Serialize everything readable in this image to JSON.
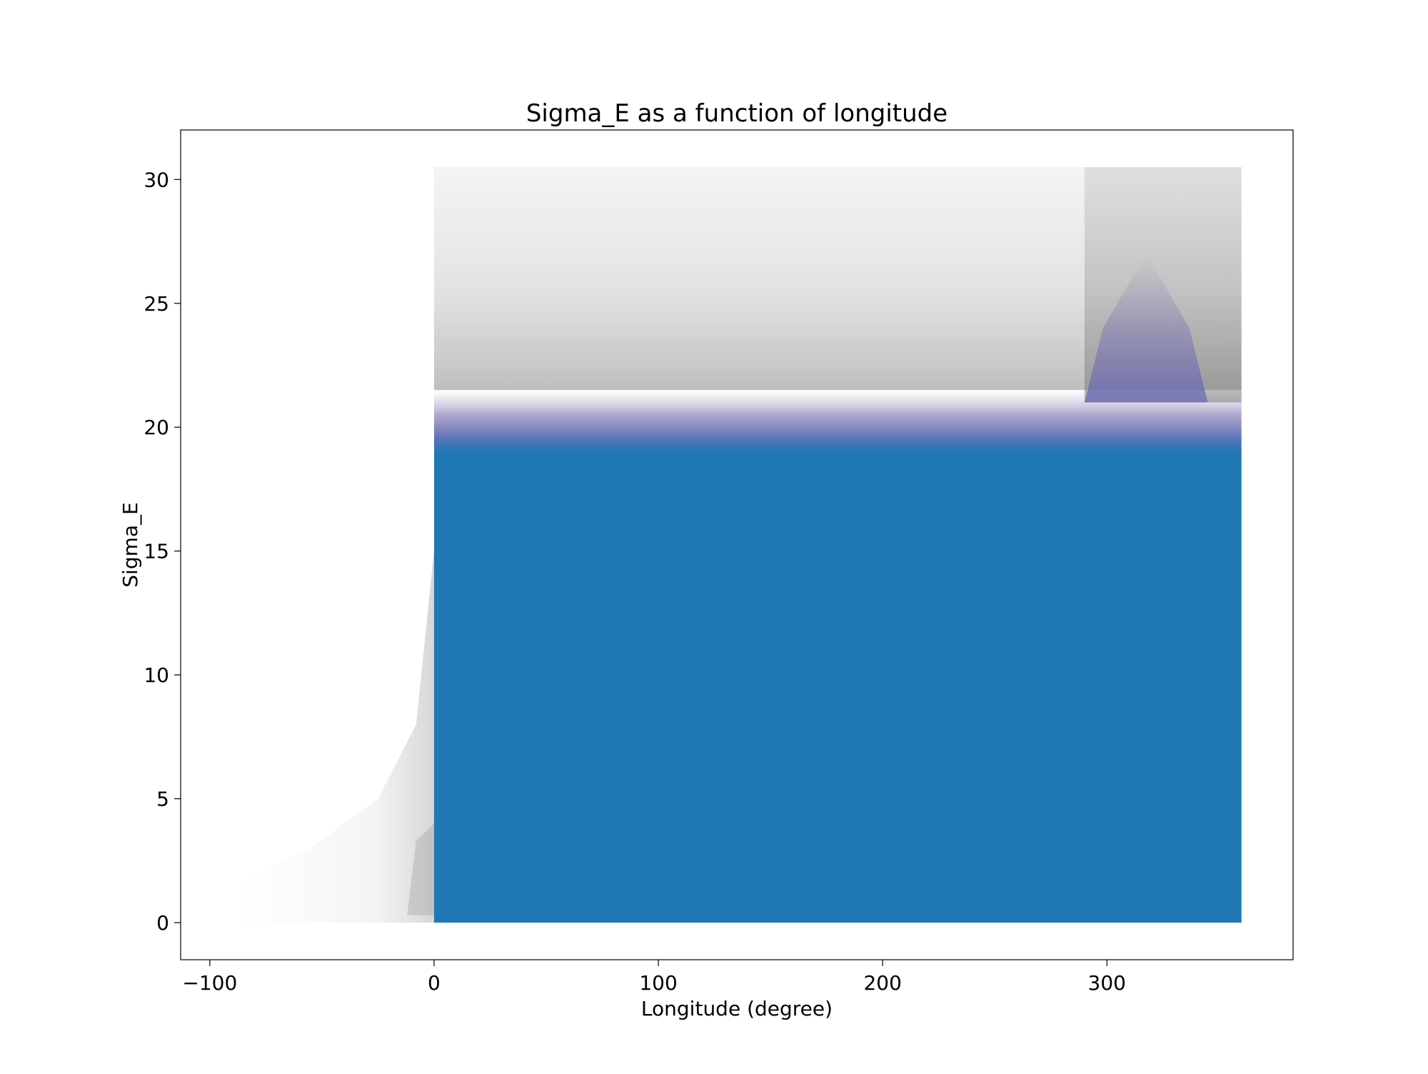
{
  "chart_data": {
    "type": "scatter",
    "title": "Sigma_E as a function of longitude",
    "xlabel": "Longitude (degree)",
    "ylabel": "Sigma_E",
    "xlim": [
      -113,
      383
    ],
    "ylim": [
      -1.5,
      32
    ],
    "xticks": [
      {
        "value": -100,
        "label": "−100"
      },
      {
        "value": 0,
        "label": "0"
      },
      {
        "value": 100,
        "label": "100"
      },
      {
        "value": 200,
        "label": "200"
      },
      {
        "value": 300,
        "label": "300"
      }
    ],
    "yticks": [
      {
        "value": 0,
        "label": "0"
      },
      {
        "value": 5,
        "label": "5"
      },
      {
        "value": 10,
        "label": "10"
      },
      {
        "value": 15,
        "label": "15"
      },
      {
        "value": 20,
        "label": "20"
      },
      {
        "value": 25,
        "label": "25"
      },
      {
        "value": 30,
        "label": "30"
      }
    ],
    "grid": false,
    "legend": false,
    "colors": {
      "points": "#1f77b4",
      "faint_points": "#7f7f7f",
      "transition": "#6a6ab5"
    },
    "regions": [
      {
        "name": "dense-blue-block",
        "x_range": [
          0,
          360
        ],
        "y_range": [
          0,
          19
        ],
        "density": "saturated"
      },
      {
        "name": "purple-transition-band",
        "x_range": [
          0,
          360
        ],
        "y_range": [
          19,
          21.5
        ],
        "density": "high"
      },
      {
        "name": "purple-high-plume",
        "x_range": [
          290,
          345
        ],
        "y_range": [
          21,
          27
        ],
        "density": "medium"
      },
      {
        "name": "grey-upper-band",
        "x_range": [
          0,
          360
        ],
        "y_range": [
          21.5,
          30.5
        ],
        "density": "low"
      },
      {
        "name": "grey-upper-dark-zone",
        "x_range": [
          290,
          360
        ],
        "y_range": [
          21,
          30.5
        ],
        "density": "medium"
      },
      {
        "name": "faint-negative-tail",
        "x_range": [
          -90,
          0
        ],
        "y_range": [
          0,
          15
        ],
        "density": "very-low"
      }
    ]
  }
}
